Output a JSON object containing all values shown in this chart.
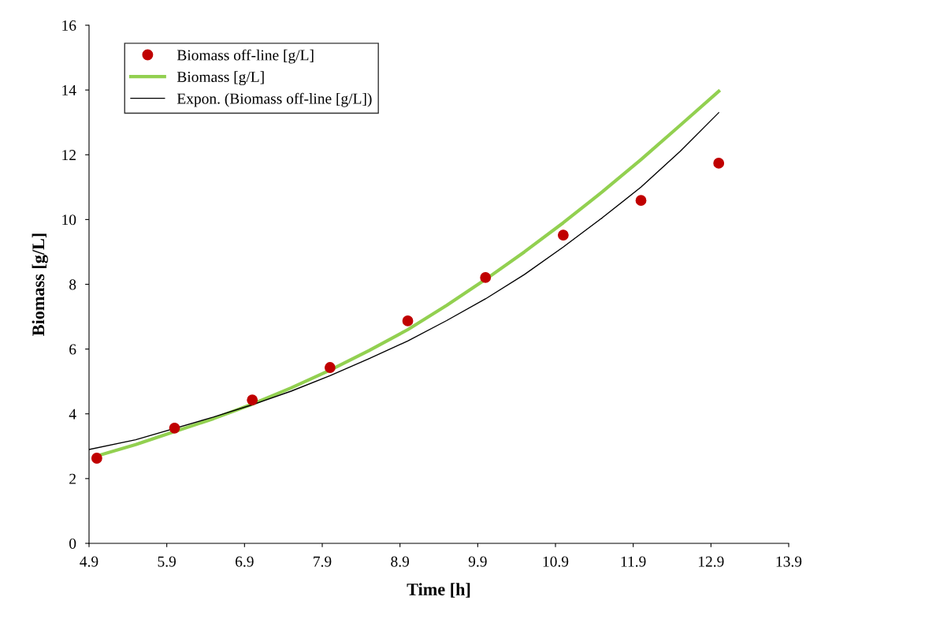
{
  "chart_data": {
    "type": "scatter",
    "xlabel": "Time [h]",
    "ylabel": "Biomass [g/L]",
    "xlim": [
      4.9,
      13.9
    ],
    "xticks": [
      4.9,
      5.9,
      6.9,
      7.9,
      8.9,
      9.9,
      10.9,
      11.9,
      12.9,
      13.9
    ],
    "ylim": [
      0,
      16
    ],
    "yticks": [
      0,
      2,
      4,
      6,
      8,
      10,
      12,
      14,
      16
    ],
    "grid": false,
    "legend": "top left",
    "series": [
      {
        "name": "Biomass off-line [g/L]",
        "marker": "circle",
        "color": "#c00000",
        "x": [
          5.0,
          6.0,
          7.0,
          8.0,
          9.0,
          10.0,
          11.0,
          12.0,
          13.0
        ],
        "values": [
          2.63,
          3.56,
          4.43,
          5.43,
          6.87,
          8.21,
          9.52,
          10.59,
          11.74
        ]
      },
      {
        "name": "Biomass [g/L]",
        "type": "line",
        "marker": "none",
        "color": "#92d050",
        "x": [
          5.0,
          5.5,
          6.0,
          6.5,
          7.0,
          7.5,
          8.0,
          8.5,
          9.0,
          9.5,
          10.0,
          10.5,
          11.0,
          11.5,
          12.0,
          12.5,
          13.0
        ],
        "values": [
          2.7,
          3.05,
          3.45,
          3.85,
          4.3,
          4.8,
          5.35,
          5.95,
          6.6,
          7.35,
          8.15,
          9.0,
          9.9,
          10.85,
          11.85,
          12.9,
          13.96
        ]
      },
      {
        "name": "Expon. (Biomass off-line [g/L])",
        "type": "line",
        "marker": "none",
        "color": "#000000",
        "x": [
          4.9,
          5.5,
          6.5,
          7.0,
          7.5,
          8.0,
          8.5,
          9.0,
          9.5,
          10.0,
          10.5,
          11.0,
          11.5,
          12.0,
          12.5,
          13.0
        ],
        "values": [
          2.9,
          3.2,
          3.9,
          4.28,
          4.7,
          5.18,
          5.7,
          6.25,
          6.88,
          7.55,
          8.3,
          9.15,
          10.05,
          11.0,
          12.1,
          13.3
        ]
      }
    ]
  }
}
